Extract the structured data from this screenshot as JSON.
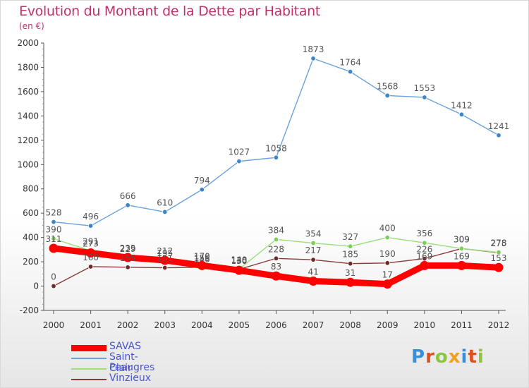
{
  "chart_data": {
    "type": "line",
    "title": "Evolution du Montant de la Dette par Habitant",
    "subtitle": "(en €)",
    "x": [
      "2000",
      "2001",
      "2002",
      "2003",
      "2004",
      "2005",
      "2006",
      "2007",
      "2008",
      "2009",
      "2010",
      "2011",
      "2012"
    ],
    "ylim": [
      -200,
      2000
    ],
    "yticks": [
      -200,
      0,
      200,
      400,
      600,
      800,
      1000,
      1200,
      1400,
      1600,
      1800,
      2000
    ],
    "grid": false,
    "legend_placement": "bottom-left",
    "series": [
      {
        "name": "SAVAS",
        "color": "#ff0000",
        "marker": "#ff0000",
        "values": [
          311,
          273,
          235,
          212,
          170,
          130,
          83,
          41,
          31,
          17,
          169,
          169,
          153
        ]
      },
      {
        "name": "Saint-Clair",
        "color": "#6aa2dd",
        "marker": "#3d85c6",
        "values": [
          528,
          496,
          666,
          610,
          794,
          1027,
          1058,
          1873,
          1764,
          1568,
          1553,
          1412,
          1241
        ]
      },
      {
        "name": "Peaugres",
        "color": "#99e07a",
        "marker": "#7ccf55",
        "values": [
          390,
          291,
          229,
          195,
          146,
          140,
          384,
          354,
          327,
          400,
          356,
          309,
          278
        ]
      },
      {
        "name": "Vinzieux",
        "color": "#8b3a3a",
        "marker": "#6e2a2a",
        "values": [
          0,
          160,
          155,
          151,
          155,
          138,
          228,
          217,
          185,
          190,
          226,
          309,
          275
        ]
      }
    ]
  },
  "logo": {
    "text": "Proxiti",
    "letters": [
      "P",
      "r",
      "o",
      "x",
      "i",
      "t",
      "i"
    ],
    "colors": [
      "#3a8fd8",
      "#e0501e",
      "#8cc63f",
      "#f0a020",
      "#3a8fd8",
      "#e0501e",
      "#8cc63f"
    ]
  }
}
